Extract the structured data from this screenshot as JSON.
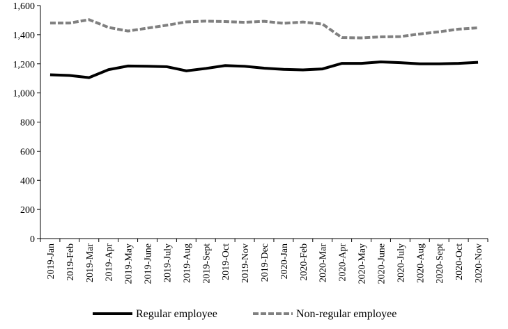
{
  "chart_data": {
    "type": "line",
    "categories": [
      "2019-Jan",
      "2019-Feb",
      "2019-Mar",
      "2019-Apr",
      "2019-May",
      "2019-June",
      "2019-July",
      "2019-Aug",
      "2019-Sept",
      "2019-Oct",
      "2019-Nov",
      "2019-Dec",
      "2020-Jan",
      "2020-Feb",
      "2020-Mar",
      "2020-Apr",
      "2020-May",
      "2020-June",
      "2020-July",
      "2020-Aug",
      "2020-Sept",
      "2020-Oct",
      "2020-Nov"
    ],
    "series": [
      {
        "name": "Regular employee",
        "color": "#000000",
        "dashed": false,
        "values": [
          1125,
          1120,
          1105,
          1160,
          1185,
          1183,
          1180,
          1152,
          1168,
          1188,
          1183,
          1170,
          1162,
          1158,
          1165,
          1203,
          1203,
          1213,
          1208,
          1200,
          1200,
          1203,
          1210
        ]
      },
      {
        "name": "Non-regular employee",
        "color": "#808080",
        "dashed": true,
        "values": [
          1480,
          1480,
          1503,
          1450,
          1425,
          1445,
          1465,
          1488,
          1493,
          1490,
          1485,
          1492,
          1478,
          1487,
          1473,
          1380,
          1378,
          1385,
          1387,
          1405,
          1420,
          1438,
          1447
        ]
      }
    ],
    "ylim": [
      0,
      1600
    ],
    "yticks": [
      0,
      200,
      400,
      600,
      800,
      {
        "value": 1000,
        "label": "1,000"
      },
      {
        "value": 1200,
        "label": "1,200"
      },
      {
        "value": 1400,
        "label": "1,400"
      },
      {
        "value": 1600,
        "label": "1,600"
      }
    ],
    "grid": false,
    "legend": "bottom"
  }
}
